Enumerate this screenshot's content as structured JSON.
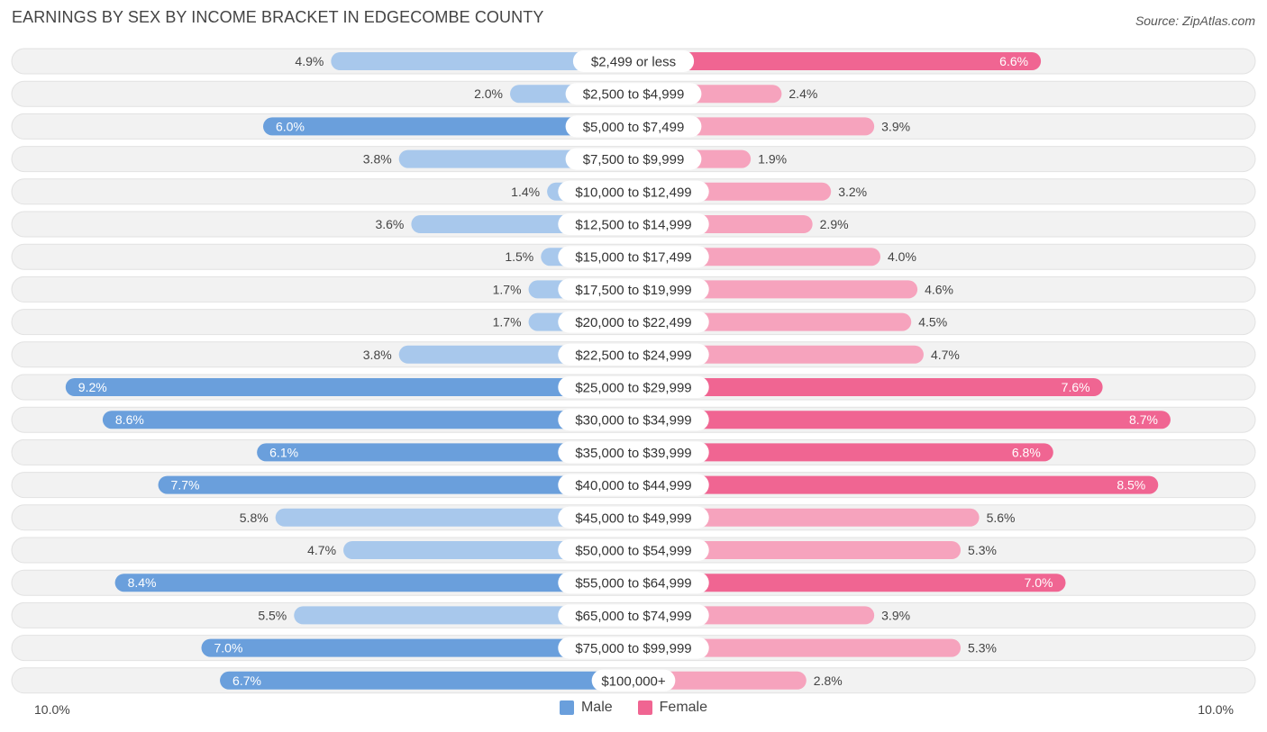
{
  "header": {
    "title": "EARNINGS BY SEX BY INCOME BRACKET IN EDGECOMBE COUNTY",
    "source": "Source: ZipAtlas.com"
  },
  "colors": {
    "male_dark": "#6a9fdc",
    "male_light": "#a8c8ec",
    "female_dark": "#f06592",
    "female_light": "#f6a3bd",
    "row_bg": "#f2f2f2"
  },
  "legend": {
    "male": "Male",
    "female": "Female"
  },
  "axis": {
    "left_label": "10.0%",
    "right_label": "10.0%"
  },
  "chart_data": {
    "type": "bar",
    "orientation": "horizontal-diverging",
    "title": "EARNINGS BY SEX BY INCOME BRACKET IN EDGECOMBE COUNTY",
    "xlim": [
      -10,
      10
    ],
    "categories": [
      "$2,499 or less",
      "$2,500 to $4,999",
      "$5,000 to $7,499",
      "$7,500 to $9,999",
      "$10,000 to $12,499",
      "$12,500 to $14,999",
      "$15,000 to $17,499",
      "$17,500 to $19,999",
      "$20,000 to $22,499",
      "$22,500 to $24,999",
      "$25,000 to $29,999",
      "$30,000 to $34,999",
      "$35,000 to $39,999",
      "$40,000 to $44,999",
      "$45,000 to $49,999",
      "$50,000 to $54,999",
      "$55,000 to $64,999",
      "$65,000 to $74,999",
      "$75,000 to $99,999",
      "$100,000+"
    ],
    "series": [
      {
        "name": "Male",
        "values": [
          4.9,
          2.0,
          6.0,
          3.8,
          1.4,
          3.6,
          1.5,
          1.7,
          1.7,
          3.8,
          9.2,
          8.6,
          6.1,
          7.7,
          5.8,
          4.7,
          8.4,
          5.5,
          7.0,
          6.7
        ],
        "labels": [
          "4.9%",
          "2.0%",
          "6.0%",
          "3.8%",
          "1.4%",
          "3.6%",
          "1.5%",
          "1.7%",
          "1.7%",
          "3.8%",
          "9.2%",
          "8.6%",
          "6.1%",
          "7.7%",
          "5.8%",
          "4.7%",
          "8.4%",
          "5.5%",
          "7.0%",
          "6.7%"
        ]
      },
      {
        "name": "Female",
        "values": [
          6.6,
          2.4,
          3.9,
          1.9,
          3.2,
          2.9,
          4.0,
          4.6,
          4.5,
          4.7,
          7.6,
          8.7,
          6.8,
          8.5,
          5.6,
          5.3,
          7.0,
          3.9,
          5.3,
          2.8
        ],
        "labels": [
          "6.6%",
          "2.4%",
          "3.9%",
          "1.9%",
          "3.2%",
          "2.9%",
          "4.0%",
          "4.6%",
          "4.5%",
          "4.7%",
          "7.6%",
          "8.7%",
          "6.8%",
          "8.5%",
          "5.6%",
          "5.3%",
          "7.0%",
          "3.9%",
          "5.3%",
          "2.8%"
        ]
      }
    ]
  }
}
